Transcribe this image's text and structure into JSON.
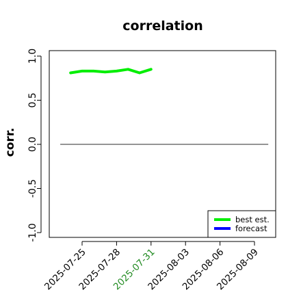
{
  "chart_data": {
    "type": "line",
    "title": "correlation",
    "xlabel": "",
    "ylabel": "corr.",
    "ylim": [
      -1,
      1
    ],
    "y_ticks": [
      "-1.0",
      "-0.5",
      "0.0",
      "0.5",
      "1.0"
    ],
    "x_tick_labels": [
      {
        "label": "2025-07-25",
        "day": 0,
        "color": "#000000"
      },
      {
        "label": "2025-07-28",
        "day": 3,
        "color": "#000000"
      },
      {
        "label": "2025-07-31",
        "day": 6,
        "color": "#228B22"
      },
      {
        "label": "2025-08-03",
        "day": 9,
        "color": "#000000"
      },
      {
        "label": "2025-08-06",
        "day": 12,
        "color": "#000000"
      },
      {
        "label": "2025-08-09",
        "day": 15,
        "color": "#000000"
      }
    ],
    "x_range_days": [
      -2,
      16.5
    ],
    "reference_line_y": 0,
    "grid": false,
    "legend_position": "bottom-right",
    "series": [
      {
        "name": "best est.",
        "color": "#00ee00",
        "x": [
          "2025-07-24",
          "2025-07-25",
          "2025-07-26",
          "2025-07-27",
          "2025-07-28",
          "2025-07-29",
          "2025-07-30",
          "2025-07-31"
        ],
        "x_days": [
          -1,
          0,
          1,
          2,
          3,
          4,
          5,
          6
        ],
        "values": [
          0.81,
          0.83,
          0.83,
          0.82,
          0.83,
          0.85,
          0.81,
          0.85
        ]
      },
      {
        "name": "forecast",
        "color": "#0000ff",
        "x": [],
        "x_days": [],
        "values": []
      }
    ]
  }
}
